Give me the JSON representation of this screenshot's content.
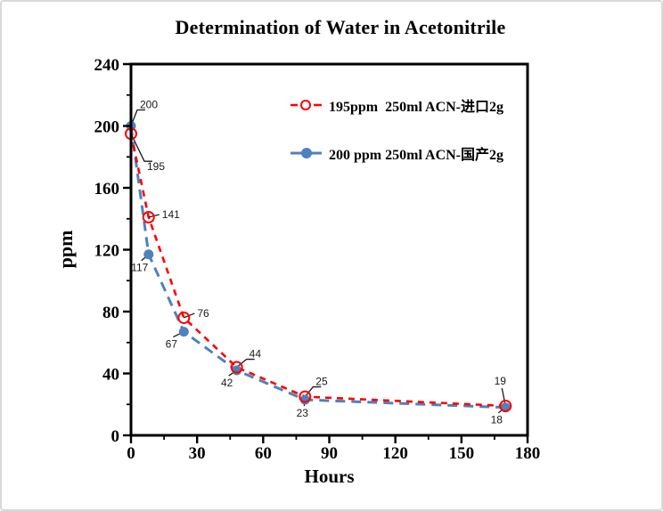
{
  "frame": {
    "background": "#ffffff",
    "border_color": "#d9d9d9"
  },
  "chart_data": {
    "type": "line",
    "title": "Determination of Water in Acetonitrile",
    "xlabel": "Hours",
    "ylabel": "ppm",
    "xlim": [
      0,
      180
    ],
    "ylim": [
      0,
      240
    ],
    "x_ticks": [
      0,
      30,
      60,
      90,
      120,
      150,
      180
    ],
    "x_minor_ticks": [
      15,
      45,
      75,
      105,
      135,
      165
    ],
    "y_ticks": [
      0,
      40,
      80,
      120,
      160,
      200,
      240
    ],
    "y_minor_ticks": [
      20,
      60,
      100,
      140,
      180,
      220
    ],
    "grid": false,
    "legend_position": "inside top-right",
    "axis_color": "#000000",
    "annotation_color": "#1a1a1a",
    "series": [
      {
        "name": "195ppm  250ml ACN-进口2g",
        "color": "#ff0000",
        "line_style": "dashed",
        "dash": "7,6",
        "line_width": 2.6,
        "marker": "open-circle",
        "points": [
          {
            "x": 0,
            "v": 195,
            "label": "195",
            "dx": 18,
            "dy": 37,
            "anchor": "start"
          },
          {
            "x": 8,
            "v": 141,
            "label": "141",
            "dx": 15,
            "dy": -3,
            "anchor": "start"
          },
          {
            "x": 24,
            "v": 76,
            "label": "76",
            "dx": 15,
            "dy": -5,
            "anchor": "start"
          },
          {
            "x": 48,
            "v": 44,
            "label": "44",
            "dx": 14,
            "dy": -15,
            "anchor": "start"
          },
          {
            "x": 79,
            "v": 25,
            "label": "25",
            "dx": 12,
            "dy": -17,
            "anchor": "start"
          },
          {
            "x": 170,
            "v": 19,
            "label": "19",
            "dx": -6,
            "dy": -28,
            "anchor": "middle"
          }
        ]
      },
      {
        "name": "200 ppm 250ml ACN-国产2g",
        "color": "#4f81bd",
        "line_style": "dashed",
        "dash": "11,7",
        "line_width": 3,
        "marker": "filled-circle",
        "points": [
          {
            "x": 0,
            "v": 200,
            "label": "200",
            "dx": 10,
            "dy": -24,
            "anchor": "start"
          },
          {
            "x": 8,
            "v": 117,
            "label": "117",
            "dx": -10,
            "dy": 15,
            "anchor": "middle"
          },
          {
            "x": 24,
            "v": 67,
            "label": "67",
            "dx": -14,
            "dy": 14,
            "anchor": "middle"
          },
          {
            "x": 48,
            "v": 42,
            "label": "42",
            "dx": -11,
            "dy": 14,
            "anchor": "middle"
          },
          {
            "x": 79,
            "v": 23,
            "label": "23",
            "dx": -3,
            "dy": 15,
            "anchor": "middle"
          },
          {
            "x": 170,
            "v": 18,
            "label": "18",
            "dx": -10,
            "dy": 14,
            "anchor": "middle"
          }
        ]
      }
    ]
  }
}
